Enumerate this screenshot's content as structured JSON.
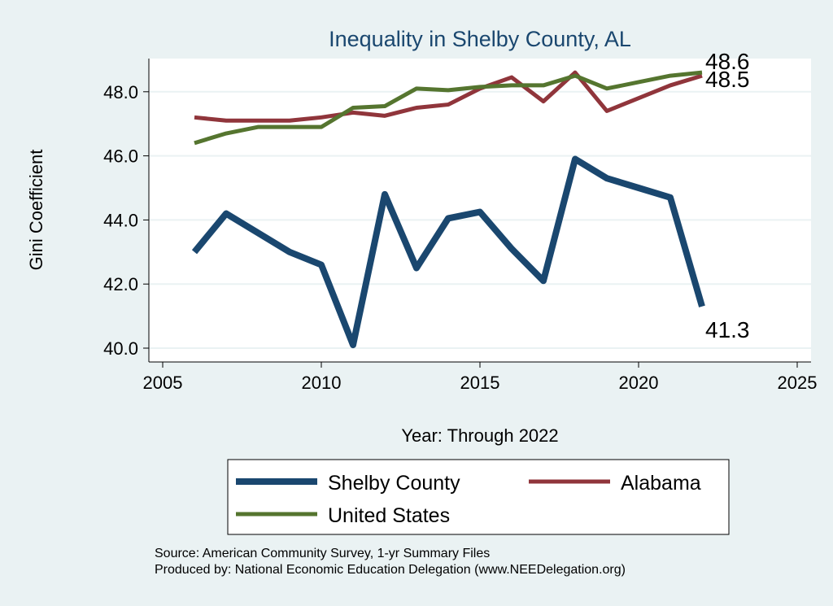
{
  "chart_data": {
    "type": "line",
    "title": "Inequality in Shelby County, AL",
    "xlabel": "Year: Through 2022",
    "ylabel": "Gini Coefficient",
    "xlim": [
      2005,
      2025
    ],
    "ylim": [
      40,
      49
    ],
    "xticks": [
      2005,
      2010,
      2015,
      2020,
      2025
    ],
    "yticks": [
      40,
      42,
      44,
      46,
      48
    ],
    "ytick_labels": [
      "40.0",
      "42.0",
      "44.0",
      "46.0",
      "48.0"
    ],
    "grid": true,
    "legend_position": "bottom",
    "x": [
      2006,
      2007,
      2008,
      2009,
      2010,
      2011,
      2012,
      2013,
      2014,
      2015,
      2016,
      2017,
      2018,
      2019,
      2020,
      2021,
      2022
    ],
    "series": [
      {
        "name": "Shelby County",
        "color": "#1a476f",
        "width": 8,
        "end_label": "41.3",
        "values": [
          43.0,
          44.2,
          43.6,
          43.0,
          42.6,
          40.1,
          44.8,
          42.5,
          44.05,
          44.25,
          43.1,
          42.1,
          45.9,
          45.3,
          45.0,
          44.7,
          41.3
        ]
      },
      {
        "name": "Alabama",
        "color": "#90353b",
        "width": 5,
        "end_label": "48.5",
        "values": [
          47.2,
          47.1,
          47.1,
          47.1,
          47.2,
          47.35,
          47.25,
          47.5,
          47.6,
          48.1,
          48.45,
          47.7,
          48.6,
          47.4,
          47.8,
          48.2,
          48.5
        ]
      },
      {
        "name": "United States",
        "color": "#55752f",
        "width": 5,
        "end_label": "48.6",
        "values": [
          46.4,
          46.7,
          46.9,
          46.9,
          46.9,
          47.5,
          47.55,
          48.1,
          48.05,
          48.15,
          48.2,
          48.2,
          48.5,
          48.1,
          48.3,
          48.5,
          48.6
        ]
      }
    ]
  },
  "notes": {
    "source": "Source: American Community Survey, 1-yr Summary Files",
    "produced": "Produced by: National Economic Education Delegation (www.NEEDelegation.org)"
  }
}
